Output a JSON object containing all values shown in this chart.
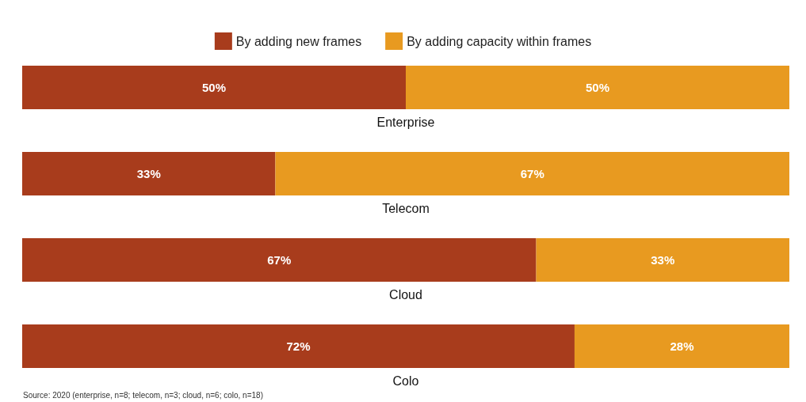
{
  "chart_data": {
    "type": "bar",
    "orientation": "horizontal",
    "stacked": true,
    "categories": [
      "Enterprise",
      "Telecom",
      "Cloud",
      "Colo"
    ],
    "series": [
      {
        "name": "By adding new frames",
        "color": "#a83c1c",
        "values": [
          50,
          33,
          67,
          72
        ],
        "value_labels": [
          "50%",
          "33%",
          "67%",
          "72%"
        ]
      },
      {
        "name": "By adding capacity within frames",
        "color": "#e89a20",
        "values": [
          50,
          67,
          33,
          28
        ],
        "value_labels": [
          "50%",
          "67%",
          "33%",
          "28%"
        ]
      }
    ],
    "legend": "top",
    "annotations": [
      "Source: 2020 (enterprise, n=8; telecom, n=3; cloud, n=6; colo, n=18)"
    ]
  }
}
